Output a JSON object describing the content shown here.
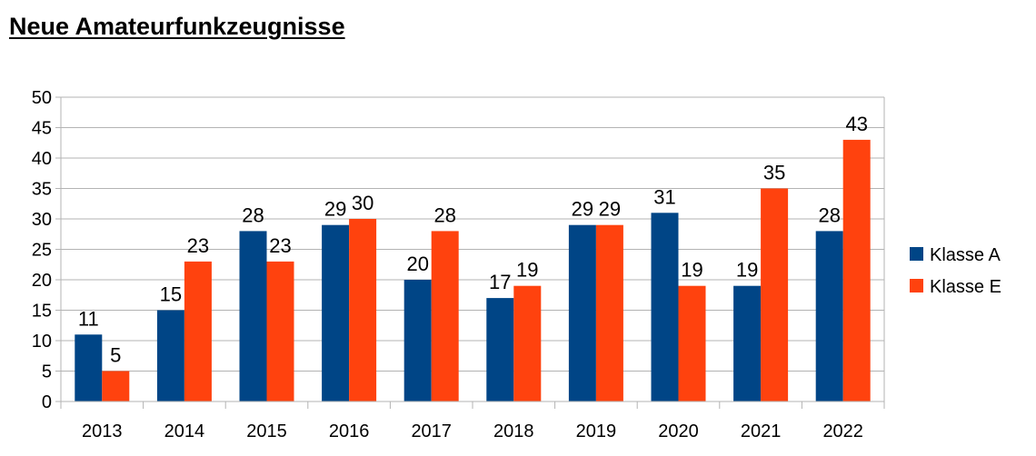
{
  "chart_data": {
    "type": "bar",
    "title": "Neue Amateurfunkzeugnisse",
    "categories": [
      "2013",
      "2014",
      "2015",
      "2016",
      "2017",
      "2018",
      "2019",
      "2020",
      "2021",
      "2022"
    ],
    "series": [
      {
        "name": "Klasse A",
        "color": "#004586",
        "values": [
          11,
          15,
          28,
          29,
          20,
          17,
          29,
          31,
          19,
          28
        ]
      },
      {
        "name": "Klasse E",
        "color": "#ff420e",
        "values": [
          5,
          23,
          23,
          30,
          28,
          19,
          29,
          19,
          35,
          43
        ]
      }
    ],
    "ylim": [
      0,
      50
    ],
    "yticks": [
      0,
      5,
      10,
      15,
      20,
      25,
      30,
      35,
      40,
      45,
      50
    ],
    "grid": true,
    "legend_position": "right",
    "data_labels": true
  }
}
